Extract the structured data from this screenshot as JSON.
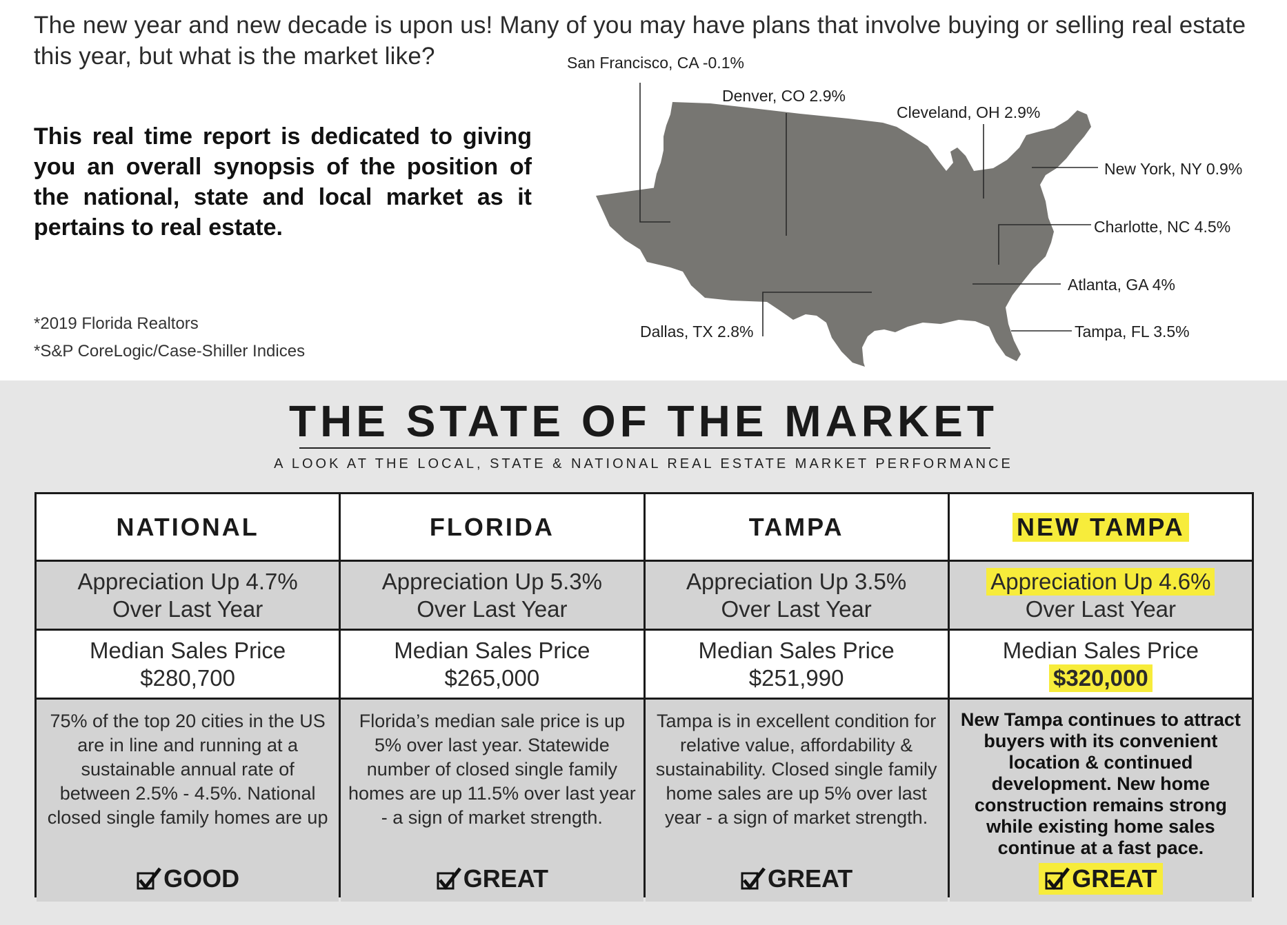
{
  "intro": {
    "text": "The new year and new decade is upon us! Many of you may have plans that involve buying or selling real estate this year, but what is the market like?",
    "synopsis": "This real time report is dedicated to giving you an overall synopsis of the position of the national, state and local market as it pertains to real estate.",
    "sources": [
      "*2019 Florida Realtors",
      "*S&P CoreLogic/Case-Shiller Indices"
    ]
  },
  "map": {
    "labels": [
      "San Francisco, CA -0.1%",
      "Denver, CO 2.9%",
      "Cleveland, OH 2.9%",
      "New York, NY 0.9%",
      "Charlotte, NC 4.5%",
      "Atlanta, GA 4%",
      "Tampa, FL 3.5%",
      "Dallas, TX 2.8%"
    ],
    "fill_color": "#777672"
  },
  "market": {
    "title": "THE STATE OF THE MARKET",
    "subtitle": "A LOOK AT THE LOCAL, STATE & NATIONAL REAL ESTATE MARKET PERFORMANCE",
    "highlight_color": "#f7ec3b",
    "columns": [
      {
        "header": "NATIONAL",
        "appreciation": "Appreciation Up 4.7%",
        "appreciation_sub": "Over Last Year",
        "median_label": "Median Sales Price",
        "median_value": "$280,700",
        "description": "75% of the top 20 cities in the US are in line and running at a sustainable annual rate of between 2.5% - 4.5%. National closed single family homes are up",
        "rating": "GOOD"
      },
      {
        "header": "FLORIDA",
        "appreciation": "Appreciation Up 5.3%",
        "appreciation_sub": "Over Last Year",
        "median_label": "Median Sales Price",
        "median_value": "$265,000",
        "description": "Florida’s median sale price is up 5% over last year.  Statewide number of closed single family homes are up 11.5% over last year - a sign of market strength.",
        "rating": "GREAT"
      },
      {
        "header": "TAMPA",
        "appreciation": "Appreciation Up 3.5%",
        "appreciation_sub": "Over Last Year",
        "median_label": "Median Sales Price",
        "median_value": "$251,990",
        "description": "Tampa is in excellent condition for relative value, affordability & sustainability. Closed single family home sales are up 5% over last year - a sign of market strength.",
        "rating": "GREAT"
      },
      {
        "header": "NEW TAMPA",
        "appreciation": "Appreciation Up 4.6%",
        "appreciation_sub": "Over Last Year",
        "median_label": "Median Sales Price",
        "median_value": "$320,000",
        "description": "New Tampa continues to attract buyers with its convenient location & continued development. New home construction remains strong while existing home sales continue at a fast pace.",
        "rating": "GREAT"
      }
    ]
  }
}
